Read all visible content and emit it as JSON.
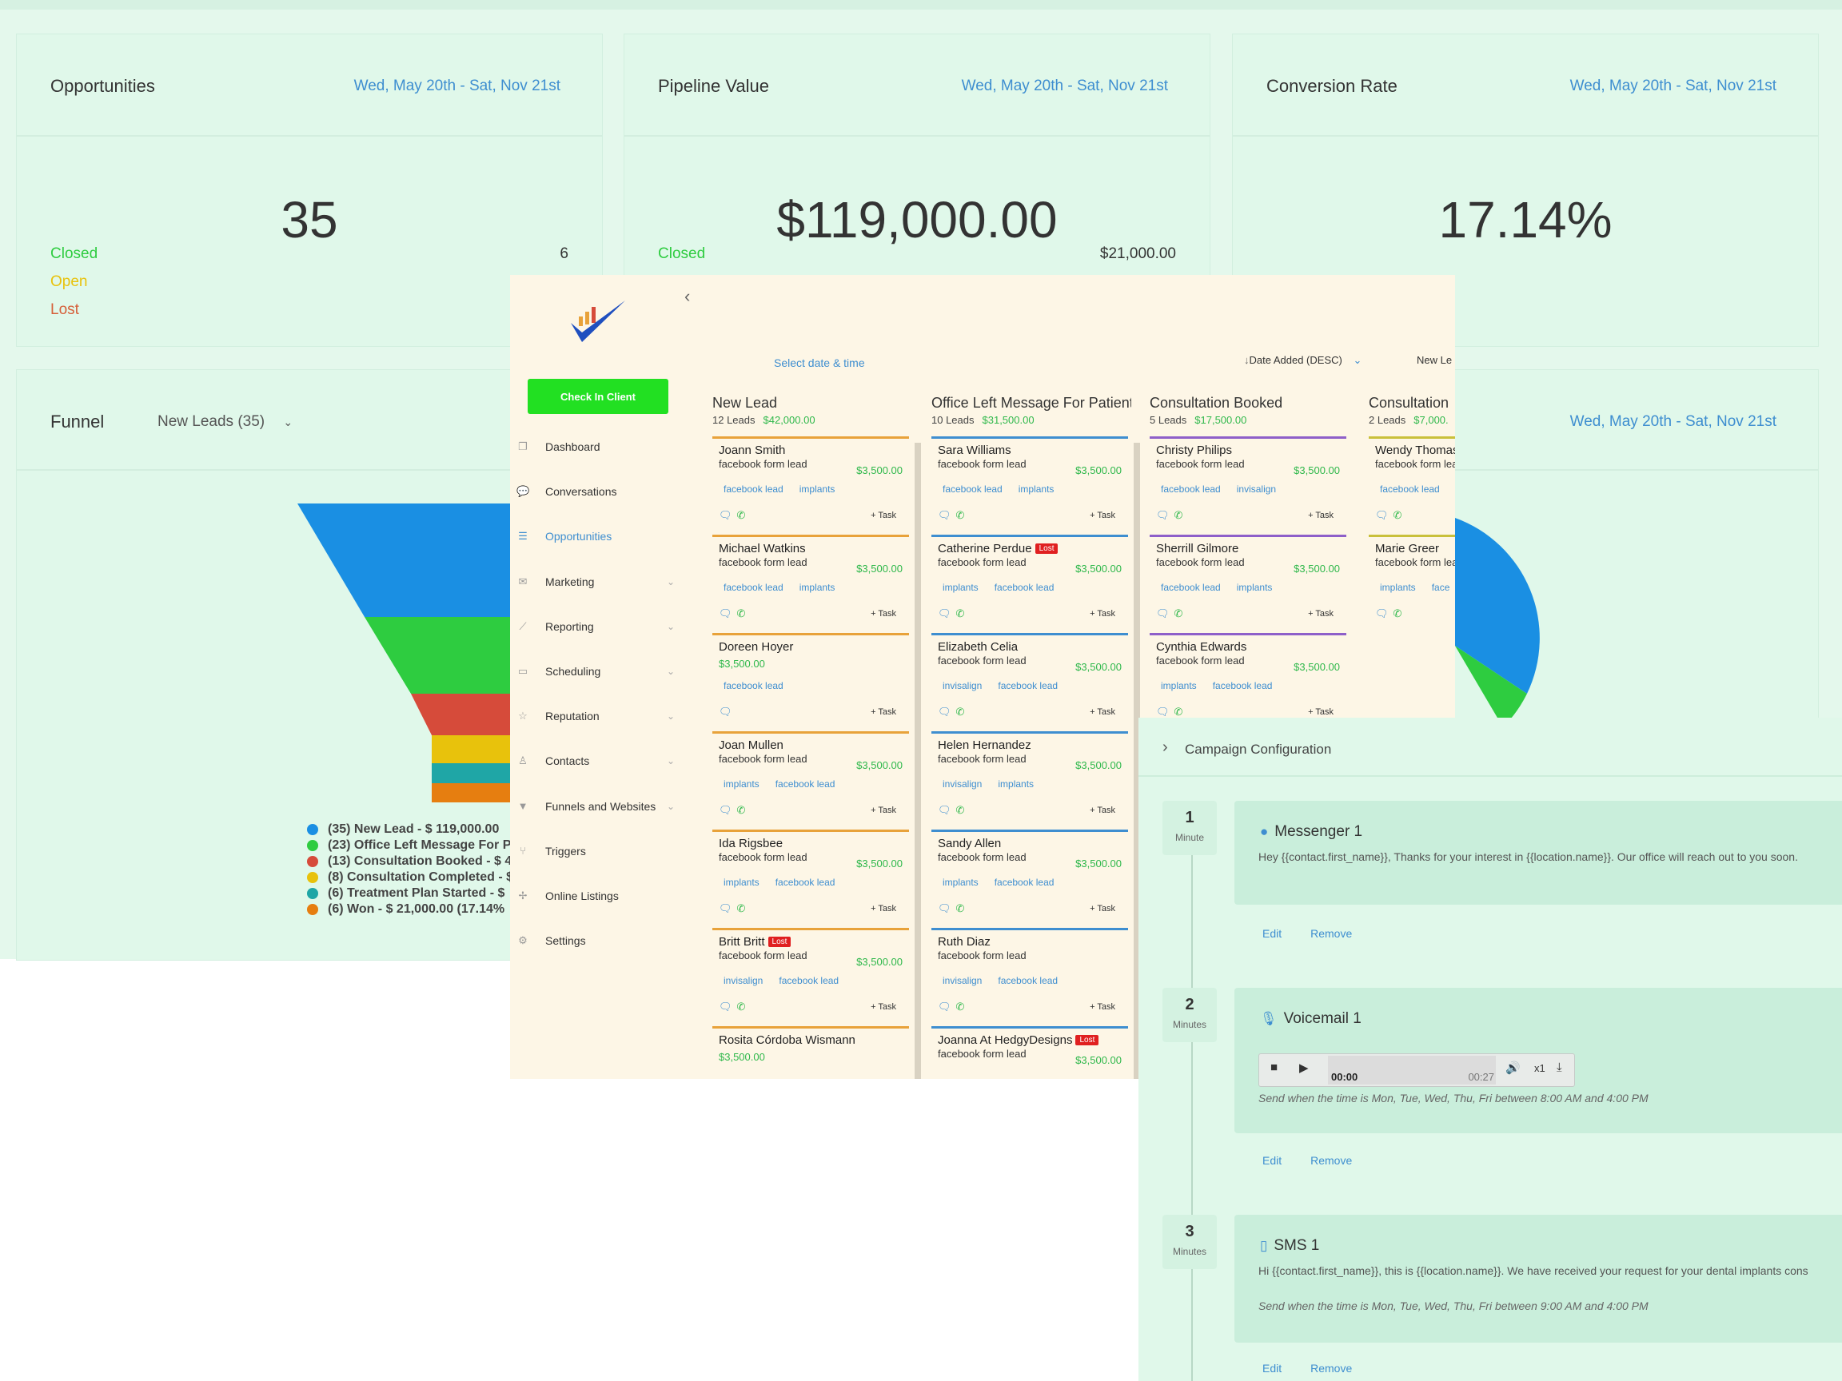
{
  "cards": {
    "opportunities": {
      "title": "Opportunities",
      "date": "Wed, May 20th - Sat, Nov 21st",
      "value": "35",
      "closed_label": "Closed",
      "closed_value": "6",
      "open_label": "Open",
      "lost_label": "Lost"
    },
    "pipeline": {
      "title": "Pipeline Value",
      "date": "Wed, May 20th - Sat, Nov 21st",
      "value": "$119,000.00",
      "closed_label": "Closed",
      "closed_value": "$21,000.00"
    },
    "conversion": {
      "title": "Conversion Rate",
      "date": "Wed, May 20th - Sat, Nov 21st",
      "value": "17.14%"
    }
  },
  "funnel": {
    "title": "Funnel",
    "select": "New Leads (35)",
    "date": "Wed, May 20th - Sat, Nov 21st",
    "legend": [
      {
        "text": "(35) New Lead - $ 119,000.00",
        "color": "#1a8fe3"
      },
      {
        "text": "(23) Office Left Message For P",
        "color": "#2ecc40"
      },
      {
        "text": "(13) Consultation Booked - $ 4",
        "color": "#d64b3a"
      },
      {
        "text": "(8) Consultation Completed - $",
        "color": "#e8c20c"
      },
      {
        "text": "(6) Treatment Plan Started - $",
        "color": "#1fa6a6"
      },
      {
        "text": "(6) Won - $ 21,000.00 (17.14%",
        "color": "#e67e10"
      }
    ],
    "colors": {
      "blue": "#1a8fe3",
      "green": "#2ecc40",
      "red": "#d64b3a",
      "yellow": "#e8c20c",
      "teal": "#1fa6a6",
      "orange": "#e67e10"
    }
  },
  "app": {
    "checkin": "Check In Client",
    "collapse_icon": "chevron-left-icon",
    "nav": [
      {
        "label": "Dashboard",
        "icon": "dashboard-icon",
        "glyph": "❐"
      },
      {
        "label": "Conversations",
        "icon": "chat-icon",
        "glyph": "💬"
      },
      {
        "label": "Opportunities",
        "icon": "opportunities-icon",
        "glyph": "☰"
      },
      {
        "label": "Marketing",
        "icon": "mail-icon",
        "glyph": "✉"
      },
      {
        "label": "Reporting",
        "icon": "chart-icon",
        "glyph": "⟋"
      },
      {
        "label": "Scheduling",
        "icon": "calendar-icon",
        "glyph": "▭"
      },
      {
        "label": "Reputation",
        "icon": "star-icon",
        "glyph": "☆"
      },
      {
        "label": "Contacts",
        "icon": "person-icon",
        "glyph": "♙"
      },
      {
        "label": "Funnels and Websites",
        "icon": "filter-icon",
        "glyph": "▼"
      },
      {
        "label": "Triggers",
        "icon": "trigger-icon",
        "glyph": "⑂"
      },
      {
        "label": "Online Listings",
        "icon": "listings-icon",
        "glyph": "✢"
      },
      {
        "label": "Settings",
        "icon": "settings-icon",
        "glyph": "⚙"
      }
    ],
    "select_date": "Select date & time",
    "sort": "↓⃧Date Added (DESC)",
    "sort_label": "Date Added (DESC)",
    "new_lead_btn": "New Le",
    "task_label": "+ Task",
    "lost_label": "Lost",
    "columns": [
      {
        "title": "New Lead",
        "count": "12 Leads",
        "amount": "$42,000.00",
        "color": "#e8a23a",
        "leads": [
          {
            "name": "Joann Smith",
            "source": "facebook form lead",
            "amount": "$3,500.00",
            "tags": [
              "facebook lead",
              "implants"
            ],
            "lost": false,
            "phone": true
          },
          {
            "name": "Michael Watkins",
            "source": "facebook form lead",
            "amount": "$3,500.00",
            "tags": [
              "facebook lead",
              "implants"
            ],
            "lost": false,
            "phone": true
          },
          {
            "name": "Doreen Hoyer",
            "source": "",
            "amount": "$3,500.00",
            "tags": [
              "facebook lead"
            ],
            "lost": false,
            "phone": false
          },
          {
            "name": "Joan Mullen",
            "source": "facebook form lead",
            "amount": "$3,500.00",
            "tags": [
              "implants",
              "facebook lead"
            ],
            "lost": false,
            "phone": true
          },
          {
            "name": "Ida Rigsbee",
            "source": "facebook form lead",
            "amount": "$3,500.00",
            "tags": [
              "implants",
              "facebook lead"
            ],
            "lost": false,
            "phone": true
          },
          {
            "name": "Britt Britt",
            "source": "facebook form lead",
            "amount": "$3,500.00",
            "tags": [
              "invisalign",
              "facebook lead"
            ],
            "lost": true,
            "phone": true
          },
          {
            "name": "Rosita Córdoba Wismann",
            "source": "",
            "amount": "$3,500.00",
            "tags": [],
            "lost": false,
            "phone": false
          }
        ]
      },
      {
        "title": "Office Left Message For Patient",
        "count": "10 Leads",
        "amount": "$31,500.00",
        "color": "#3e8ed0",
        "leads": [
          {
            "name": "Sara Williams",
            "source": "facebook form lead",
            "amount": "$3,500.00",
            "tags": [
              "facebook lead",
              "implants"
            ],
            "lost": false,
            "phone": true
          },
          {
            "name": "Catherine Perdue",
            "source": "facebook form lead",
            "amount": "$3,500.00",
            "tags": [
              "implants",
              "facebook lead"
            ],
            "lost": true,
            "phone": true
          },
          {
            "name": "Elizabeth Celia",
            "source": "facebook form lead",
            "amount": "$3,500.00",
            "tags": [
              "invisalign",
              "facebook lead"
            ],
            "lost": false,
            "phone": true
          },
          {
            "name": "Helen Hernandez",
            "source": "facebook form lead",
            "amount": "$3,500.00",
            "tags": [
              "invisalign",
              "implants"
            ],
            "lost": false,
            "phone": true
          },
          {
            "name": "Sandy Allen",
            "source": "facebook form lead",
            "amount": "$3,500.00",
            "tags": [
              "implants",
              "facebook lead"
            ],
            "lost": false,
            "phone": true
          },
          {
            "name": "Ruth Diaz",
            "source": "facebook form lead",
            "amount": "",
            "tags": [
              "invisalign",
              "facebook lead"
            ],
            "lost": false,
            "phone": true
          },
          {
            "name": "Joanna At HedgyDesigns",
            "source": "facebook form lead",
            "amount": "$3,500.00",
            "tags": [],
            "lost": true,
            "phone": false
          }
        ]
      },
      {
        "title": "Consultation Booked",
        "count": "5 Leads",
        "amount": "$17,500.00",
        "color": "#8e5fc9",
        "leads": [
          {
            "name": "Christy Philips",
            "source": "facebook form lead",
            "amount": "$3,500.00",
            "tags": [
              "facebook lead",
              "invisalign"
            ],
            "lost": false,
            "phone": true
          },
          {
            "name": "Sherrill Gilmore",
            "source": "facebook form lead",
            "amount": "$3,500.00",
            "tags": [
              "facebook lead",
              "implants"
            ],
            "lost": false,
            "phone": true
          },
          {
            "name": "Cynthia Edwards",
            "source": "facebook form lead",
            "amount": "$3,500.00",
            "tags": [
              "implants",
              "facebook lead"
            ],
            "lost": false,
            "phone": true
          }
        ]
      },
      {
        "title": "Consultation",
        "count": "2 Leads",
        "amount": "$7,000.",
        "color": "#c9c03a",
        "leads": [
          {
            "name": "Wendy Thomas",
            "source": "facebook form lead",
            "amount": "",
            "tags": [
              "facebook lead"
            ],
            "lost": false,
            "phone": true
          },
          {
            "name": "Marie Greer",
            "source": "facebook form lead",
            "amount": "",
            "tags": [
              "implants",
              "face"
            ],
            "lost": false,
            "phone": true
          }
        ]
      }
    ]
  },
  "campaign": {
    "title": "Campaign Configuration",
    "steps": [
      {
        "num": "1",
        "unit": "Minute",
        "title": "Messenger 1",
        "icon": "messenger-icon",
        "text": "Hey {{contact.first_name}}, Thanks for your interest in {{location.name}}.  Our office will reach out to you soon.",
        "note": "",
        "edit": "Edit",
        "remove": "Remove"
      },
      {
        "num": "2",
        "unit": "Minutes",
        "title": "Voicemail 1",
        "icon": "microphone-icon",
        "text": "",
        "note": "Send when the time is Mon, Tue, Wed, Thu, Fri between 8:00 AM and 4:00 PM",
        "edit": "Edit",
        "remove": "Remove",
        "audio": {
          "current": "00:00",
          "duration": "00:27",
          "speed": "x1"
        }
      },
      {
        "num": "3",
        "unit": "Minutes",
        "title": "SMS 1",
        "icon": "phone-icon",
        "text": "Hi {{contact.first_name}}, this is {{location.name}}. We have received your request for your dental implants cons",
        "note": "Send when the time is Mon, Tue, Wed, Thu, Fri between 9:00 AM and 4:00 PM",
        "edit": "Edit",
        "remove": "Remove"
      }
    ]
  }
}
